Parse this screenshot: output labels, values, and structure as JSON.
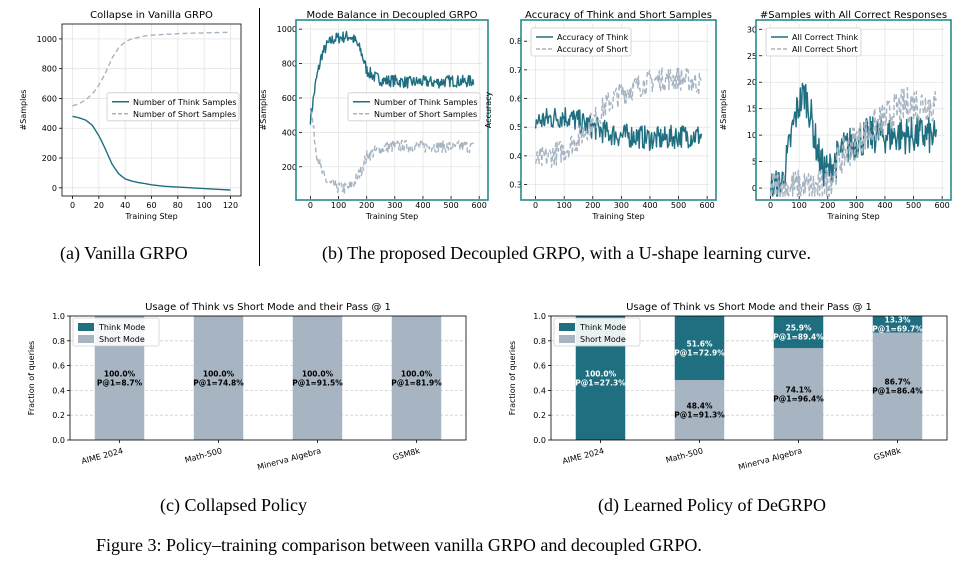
{
  "figure_caption": "Figure 3: Policy–training comparison between vanilla GRPO and decoupled GRPO.",
  "subcaptions": {
    "a": "(a) Vanilla GRPO",
    "b": "(b) The proposed Decoupled GRPO, with a U-shape learning curve.",
    "c": "(c) Collapsed Policy",
    "d": "(d) Learned Policy of DeGRPO"
  },
  "colors": {
    "think": "#1f6f80",
    "short": "#a7b4c2",
    "frame": "#2a8a8a"
  },
  "chart_data": [
    {
      "id": "a",
      "type": "line",
      "title": "Collapse in Vanilla GRPO",
      "xlabel": "Training Step",
      "ylabel": "#Samples",
      "xlim": [
        -8,
        128
      ],
      "ylim": [
        -55,
        1100
      ],
      "xticks": [
        "0",
        "20",
        "40",
        "60",
        "80",
        "100",
        "120"
      ],
      "yticks": [
        "0",
        "200",
        "400",
        "600",
        "800",
        "1000"
      ],
      "legend": "center-right",
      "grid": true,
      "series": [
        {
          "name": "Number of Think Samples",
          "style": "solid",
          "x": [
            0,
            5,
            10,
            15,
            20,
            25,
            30,
            35,
            40,
            45,
            50,
            55,
            60,
            70,
            80,
            90,
            100,
            110,
            120
          ],
          "y": [
            480,
            470,
            455,
            420,
            350,
            260,
            160,
            95,
            60,
            45,
            35,
            28,
            20,
            10,
            5,
            0,
            -5,
            -10,
            -15
          ]
        },
        {
          "name": "Number of Short Samples",
          "style": "dashed",
          "x": [
            0,
            5,
            10,
            15,
            20,
            25,
            30,
            35,
            40,
            45,
            50,
            55,
            60,
            70,
            80,
            90,
            100,
            110,
            120
          ],
          "y": [
            550,
            565,
            590,
            630,
            690,
            770,
            870,
            940,
            980,
            1000,
            1010,
            1020,
            1025,
            1030,
            1035,
            1038,
            1040,
            1042,
            1045
          ]
        }
      ]
    },
    {
      "id": "b",
      "type": "line",
      "title": "Mode Balance in Decoupled GRPO",
      "xlabel": "Training Step",
      "ylabel": "#Samples",
      "xlim": [
        -30,
        610
      ],
      "ylim": [
        30,
        1030
      ],
      "xticks": [
        "0",
        "100",
        "200",
        "300",
        "400",
        "500",
        "600"
      ],
      "yticks": [
        "200",
        "400",
        "600",
        "800",
        "1000"
      ],
      "legend": "center-right",
      "grid": true,
      "series": [
        {
          "name": "Number of Think Samples",
          "style": "solid",
          "x": [
            0,
            20,
            40,
            60,
            80,
            100,
            120,
            140,
            160,
            180,
            200,
            230,
            260,
            300,
            350,
            400,
            450,
            500,
            550,
            580
          ],
          "y": [
            480,
            700,
            850,
            910,
            940,
            950,
            955,
            960,
            930,
            870,
            760,
            720,
            700,
            700,
            690,
            695,
            690,
            700,
            695,
            700
          ]
        },
        {
          "name": "Number of Short Samples",
          "style": "dashed",
          "x": [
            0,
            20,
            40,
            60,
            80,
            100,
            120,
            140,
            160,
            180,
            200,
            230,
            260,
            300,
            350,
            400,
            450,
            500,
            550,
            580
          ],
          "y": [
            560,
            300,
            170,
            110,
            90,
            80,
            75,
            80,
            120,
            180,
            260,
            290,
            310,
            320,
            320,
            315,
            320,
            315,
            320,
            310
          ]
        }
      ]
    },
    {
      "id": "c",
      "type": "line",
      "title": "Accuracy of Think and Short Samples",
      "xlabel": "Training Step",
      "ylabel": "Accuracy",
      "xlim": [
        -30,
        610
      ],
      "ylim": [
        0.26,
        0.86
      ],
      "xticks": [
        "0",
        "100",
        "200",
        "300",
        "400",
        "500",
        "600"
      ],
      "yticks": [
        "0.3",
        "0.4",
        "0.5",
        "0.6",
        "0.7",
        "0.8"
      ],
      "legend": "upper-left",
      "grid": true,
      "series": [
        {
          "name": "Accuracy of Think",
          "style": "solid",
          "x": [
            0,
            50,
            100,
            150,
            200,
            250,
            300,
            350,
            400,
            450,
            500,
            550,
            580
          ],
          "y": [
            0.52,
            0.53,
            0.54,
            0.52,
            0.5,
            0.48,
            0.47,
            0.47,
            0.46,
            0.46,
            0.47,
            0.47,
            0.47
          ]
        },
        {
          "name": "Accuracy of Short",
          "style": "dashed",
          "x": [
            0,
            50,
            100,
            150,
            200,
            250,
            300,
            350,
            400,
            450,
            500,
            550,
            580
          ],
          "y": [
            0.38,
            0.4,
            0.42,
            0.46,
            0.52,
            0.58,
            0.62,
            0.64,
            0.66,
            0.67,
            0.67,
            0.66,
            0.65
          ]
        }
      ]
    },
    {
      "id": "d",
      "type": "line",
      "title": "#Samples with All Correct Responses",
      "xlabel": "Training Step",
      "ylabel": "#Samples",
      "xlim": [
        -30,
        610
      ],
      "ylim": [
        -1.5,
        31
      ],
      "xticks": [
        "0",
        "100",
        "200",
        "300",
        "400",
        "500",
        "600"
      ],
      "yticks": [
        "0",
        "5",
        "10",
        "15",
        "20",
        "25",
        "30"
      ],
      "legend": "upper-left",
      "grid": true,
      "series": [
        {
          "name": "All Correct Think",
          "style": "solid",
          "x": [
            0,
            20,
            40,
            60,
            80,
            100,
            120,
            140,
            160,
            180,
            200,
            250,
            300,
            350,
            400,
            450,
            500,
            550,
            580
          ],
          "y": [
            0,
            0,
            1,
            6,
            12,
            16,
            18,
            14,
            8,
            4,
            3,
            7,
            9,
            10,
            10,
            10,
            10,
            10,
            9
          ]
        },
        {
          "name": "All Correct Short",
          "style": "dashed",
          "x": [
            0,
            20,
            40,
            60,
            80,
            100,
            120,
            140,
            160,
            180,
            200,
            250,
            300,
            350,
            400,
            450,
            500,
            550,
            580
          ],
          "y": [
            0,
            0,
            0,
            0,
            0,
            0,
            0,
            0,
            0,
            0,
            1,
            6,
            9,
            11,
            13,
            15,
            16,
            16,
            15
          ]
        }
      ]
    },
    {
      "id": "e",
      "type": "bar",
      "title": "Usage of Think vs Short Mode and their Pass @ 1",
      "ylabel": "Fraction of queries",
      "ylim": [
        0,
        1.0
      ],
      "yticks": [
        "0.0",
        "0.2",
        "0.4",
        "0.6",
        "0.8",
        "1.0"
      ],
      "legend": "upper-left",
      "grid": true,
      "categories": [
        "AIME 2024",
        "Math-500",
        "Minerva Algebra",
        "GSM8k"
      ],
      "series": [
        {
          "name": "Think Mode",
          "values": [
            0,
            0,
            0,
            0
          ],
          "labels": [
            "",
            "",
            "",
            ""
          ]
        },
        {
          "name": "Short Mode",
          "values": [
            1.0,
            1.0,
            1.0,
            1.0
          ],
          "labels": [
            "100.0%\nP@1=8.7%",
            "100.0%\nP@1=74.8%",
            "100.0%\nP@1=91.5%",
            "100.0%\nP@1=81.9%"
          ]
        }
      ]
    },
    {
      "id": "f",
      "type": "bar",
      "title": "Usage of Think vs Short Mode and their Pass @ 1",
      "ylabel": "Fraction of queries",
      "ylim": [
        0,
        1.0
      ],
      "yticks": [
        "0.0",
        "0.2",
        "0.4",
        "0.6",
        "0.8",
        "1.0"
      ],
      "legend": "upper-left",
      "grid": true,
      "categories": [
        "AIME 2024",
        "Math-500",
        "Minerva Algebra",
        "GSM8k"
      ],
      "series": [
        {
          "name": "Think Mode",
          "values": [
            1.0,
            0.516,
            0.259,
            0.133
          ],
          "labels": [
            "100.0%\nP@1=27.3%",
            "51.6%\nP@1=72.9%",
            "25.9%\nP@1=89.4%",
            "13.3%\nP@1=69.7%"
          ]
        },
        {
          "name": "Short Mode",
          "values": [
            0,
            0.484,
            0.741,
            0.867
          ],
          "labels": [
            "",
            "48.4%\nP@1=91.3%",
            "74.1%\nP@1=96.4%",
            "86.7%\nP@1=86.4%"
          ]
        }
      ]
    }
  ]
}
